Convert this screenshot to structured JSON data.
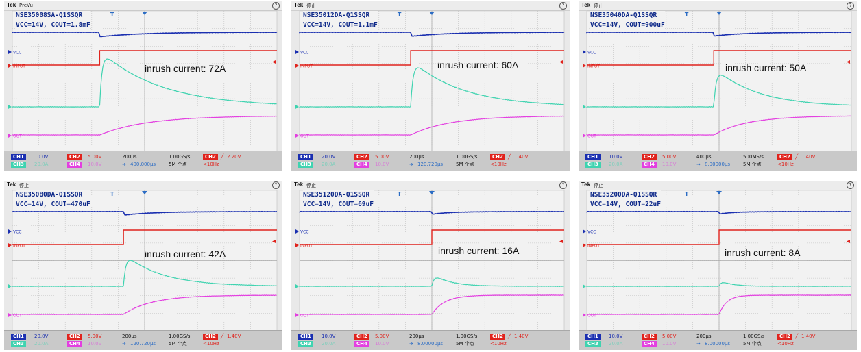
{
  "panels": [
    {
      "status": "PreVu",
      "title_line1": "NSE35008SA-Q1SSQR",
      "title_line2": "VCC=14V, COUT=1.8mF",
      "annotation": "inrush current: 72A",
      "ch1_scale": "10.0V",
      "ch2_scale": "5.00V",
      "ch3_scale": "20.0A",
      "ch4_scale": "10.0V",
      "time_div": "200µs",
      "sample_rate": "1.00GS/s",
      "position": "400.000µs",
      "record_length": "5M 个点",
      "trigger": "2.20V",
      "trigger_freq": "<10Hz",
      "trace_params": {
        "step_t": 0.33,
        "peak_i": 72
      }
    },
    {
      "status": "停止",
      "title_line1": "NSE35012DA-Q1SSQR",
      "title_line2": "VCC=14V, COUT=1.1mF",
      "annotation": "inrush current: 60A",
      "ch1_scale": "20.0V",
      "ch2_scale": "5.00V",
      "ch3_scale": "20.0A",
      "ch4_scale": "10.0V",
      "time_div": "200µs",
      "sample_rate": "1.00GS/s",
      "position": "120.720µs",
      "record_length": "5M 个点",
      "trigger": "1.40V",
      "trigger_freq": "<10Hz",
      "trace_params": {
        "step_t": 0.42,
        "peak_i": 60
      }
    },
    {
      "status": "停止",
      "title_line1": "NSE35040DA-Q1SSQR",
      "title_line2": "VCC=14V, COUT=900uF",
      "annotation": "inrush current: 50A",
      "ch1_scale": "10.0V",
      "ch2_scale": "5.00V",
      "ch3_scale": "20.0A",
      "ch4_scale": "10.0V",
      "time_div": "400µs",
      "sample_rate": "500MS/s",
      "position": "8.00000µs",
      "record_length": "5M 个点",
      "trigger": "1.40V",
      "trigger_freq": "<10Hz",
      "trace_params": {
        "step_t": 0.48,
        "peak_i": 50
      }
    },
    {
      "status": "停止",
      "title_line1": "NSE35080DA-Q1SSQR",
      "title_line2": "VCC=14V, COUT=470uF",
      "annotation": "inrush current: 42A",
      "ch1_scale": "20.0V",
      "ch2_scale": "5.00V",
      "ch3_scale": "20.0A",
      "ch4_scale": "10.0V",
      "time_div": "200µs",
      "sample_rate": "1.00GS/s",
      "position": "120.720µs",
      "record_length": "5M 个点",
      "trigger": "1.40V",
      "trigger_freq": "<10Hz",
      "trace_params": {
        "step_t": 0.42,
        "peak_i": 42
      }
    },
    {
      "status": "停止",
      "title_line1": "NSE35120DA-Q1SSQR",
      "title_line2": "VCC=14V, COUT=69uF",
      "annotation": "inrush current: 16A",
      "ch1_scale": "10.0V",
      "ch2_scale": "5.00V",
      "ch3_scale": "20.0A",
      "ch4_scale": "10.0V",
      "time_div": "200µs",
      "sample_rate": "1.00GS/s",
      "position": "8.00000µs",
      "record_length": "5M 个点",
      "trigger": "1.40V",
      "trigger_freq": "<10Hz",
      "trace_params": {
        "step_t": 0.5,
        "peak_i": 16
      }
    },
    {
      "status": "停止",
      "title_line1": "NSE35200DA-Q1SSQR",
      "title_line2": "VCC=14V, COUT=22uF",
      "annotation": "inrush current: 8A",
      "ch1_scale": "10.0V",
      "ch2_scale": "5.00V",
      "ch3_scale": "20.0A",
      "ch4_scale": "10.0V",
      "time_div": "200µs",
      "sample_rate": "1.00GS/s",
      "position": "8.00000µs",
      "record_length": "5M 个点",
      "trigger": "1.40V",
      "trigger_freq": "<10Hz",
      "trace_params": {
        "step_t": 0.5,
        "peak_i": 8
      }
    }
  ],
  "labels": {
    "brand": "Tek",
    "ch1": "CH1",
    "ch2": "CH2",
    "ch3": "CH3",
    "ch4": "CH4",
    "vcc": "VCC",
    "input": "INPUT",
    "out": "OUT"
  },
  "colors": {
    "ch1": "#1a2fb0",
    "ch2": "#e0231d",
    "ch3": "#3fd3b0",
    "ch4": "#e33fe0",
    "grid": "#bdbdbd",
    "background": "#f2f2f2"
  },
  "chart_data": [
    {
      "type": "line",
      "title": "NSE35008SA-Q1SSQR",
      "series": [
        {
          "name": "VCC"
        },
        {
          "name": "INPUT"
        },
        {
          "name": "OUT"
        }
      ],
      "peak_inrush_A": 72
    },
    {
      "type": "line",
      "title": "NSE35012DA-Q1SSQR",
      "series": [
        {
          "name": "VCC"
        },
        {
          "name": "INPUT"
        },
        {
          "name": "OUT"
        }
      ],
      "peak_inrush_A": 60
    },
    {
      "type": "line",
      "title": "NSE35040DA-Q1SSQR",
      "series": [
        {
          "name": "VCC"
        },
        {
          "name": "INPUT"
        },
        {
          "name": "OUT"
        }
      ],
      "peak_inrush_A": 50
    },
    {
      "type": "line",
      "title": "NSE35080DA-Q1SSQR",
      "series": [
        {
          "name": "VCC"
        },
        {
          "name": "INPUT"
        },
        {
          "name": "OUT"
        }
      ],
      "peak_inrush_A": 42
    },
    {
      "type": "line",
      "title": "NSE35120DA-Q1SSQR",
      "series": [
        {
          "name": "VCC"
        },
        {
          "name": "INPUT"
        },
        {
          "name": "OUT"
        }
      ],
      "peak_inrush_A": 16
    },
    {
      "type": "line",
      "title": "NSE35200DA-Q1SSQR",
      "series": [
        {
          "name": "VCC"
        },
        {
          "name": "INPUT"
        },
        {
          "name": "OUT"
        }
      ],
      "peak_inrush_A": 8
    }
  ]
}
